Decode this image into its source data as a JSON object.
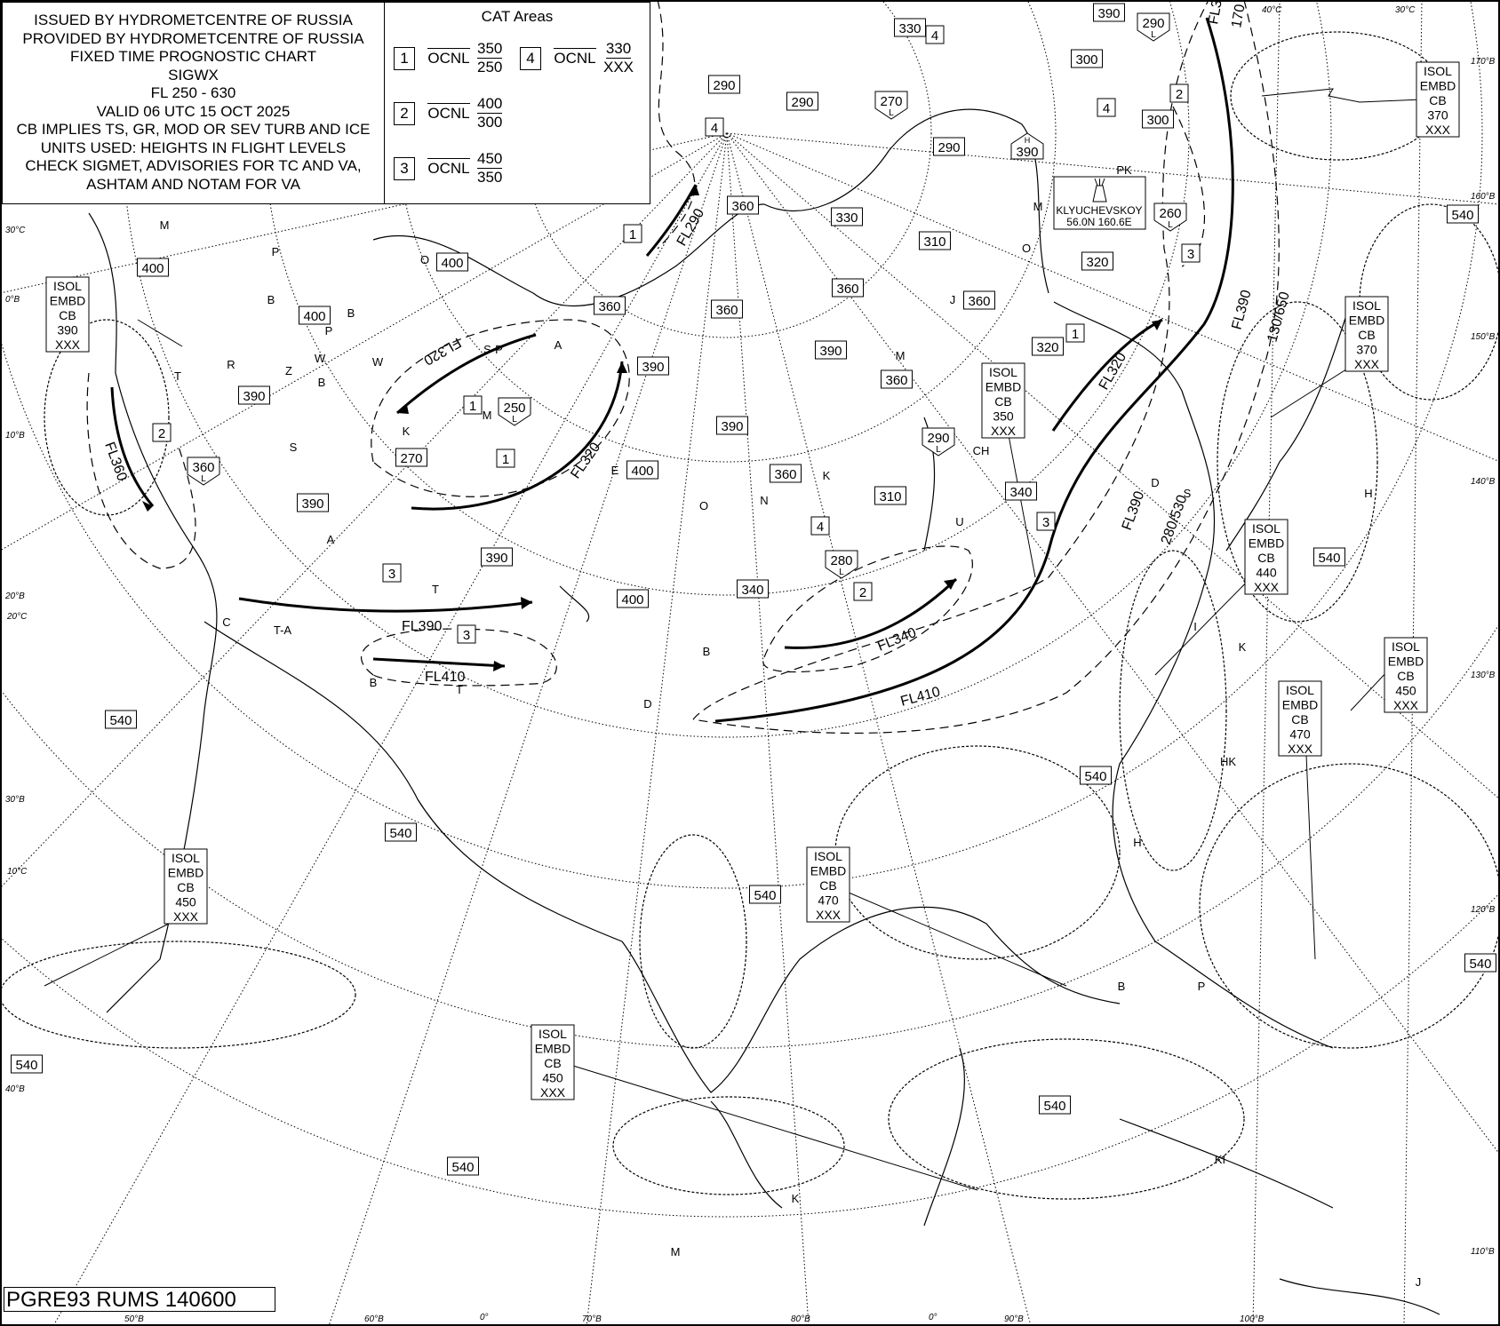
{
  "header": {
    "lines": [
      "ISSUED BY HYDROMETCENTRE OF RUSSIA",
      "PROVIDED BY HYDROMETCENTRE OF RUSSIA",
      "FIXED TIME PROGNOSTIC CHART",
      "SIGWX",
      "FL 250 - 630",
      "VALID 06 UTC 15 OCT 2025",
      "CB IMPLIES TS, GR, MOD OR SEV TURB AND ICE",
      "UNITS USED: HEIGHTS IN FLIGHT LEVELS",
      "CHECK SIGMET, ADVISORIES FOR TC AND VA,",
      "ASHTAM AND NOTAM FOR VA"
    ]
  },
  "cat_areas": {
    "title": "CAT Areas",
    "items": [
      {
        "num": "1",
        "label": "OCNL",
        "top": "350",
        "base": "250"
      },
      {
        "num": "2",
        "label": "OCNL",
        "top": "400",
        "base": "300"
      },
      {
        "num": "3",
        "label": "OCNL",
        "top": "450",
        "base": "350"
      },
      {
        "num": "4",
        "label": "OCNL",
        "top": "330",
        "base": "XXX"
      }
    ]
  },
  "tropopause": {
    "heights": [
      "330",
      "300",
      "290",
      "290",
      "290",
      "300",
      "360",
      "330",
      "310",
      "320",
      "360",
      "360",
      "320",
      "390",
      "360",
      "390",
      "360",
      "310",
      "340",
      "340",
      "400",
      "400",
      "390",
      "360",
      "360",
      "400",
      "400",
      "400",
      "390",
      "390",
      "390",
      "270",
      "390"
    ],
    "lows": [
      {
        "value": "290",
        "type": "L"
      },
      {
        "value": "270",
        "type": "L"
      },
      {
        "value": "260",
        "type": "L"
      },
      {
        "value": "250",
        "type": "L"
      },
      {
        "value": "360",
        "type": "L"
      },
      {
        "value": "290",
        "type": "L"
      },
      {
        "value": "280",
        "type": "L"
      }
    ],
    "highs": [
      {
        "value": "390",
        "type": "H"
      }
    ]
  },
  "freezing_level": [
    "540",
    "540",
    "540",
    "540",
    "540",
    "540",
    "540",
    "540",
    "540",
    "540"
  ],
  "cat_markers": [
    "4",
    "4",
    "4",
    "2",
    "1",
    "1",
    "3",
    "1",
    "1",
    "2",
    "3",
    "3",
    "4",
    "2",
    "3"
  ],
  "cb_areas": [
    {
      "lines": [
        "ISOL",
        "EMBD",
        "CB",
        "370",
        "XXX"
      ]
    },
    {
      "lines": [
        "ISOL",
        "EMBD",
        "CB",
        "390",
        "XXX"
      ]
    },
    {
      "lines": [
        "ISOL",
        "EMBD",
        "CB",
        "350",
        "XXX"
      ]
    },
    {
      "lines": [
        "ISOL",
        "EMBD",
        "CB",
        "370",
        "XXX"
      ]
    },
    {
      "lines": [
        "ISOL",
        "EMBD",
        "CB",
        "440",
        "XXX"
      ]
    },
    {
      "lines": [
        "ISOL",
        "EMBD",
        "CB",
        "450",
        "XXX"
      ]
    },
    {
      "lines": [
        "ISOL",
        "EMBD",
        "CB",
        "470",
        "XXX"
      ]
    },
    {
      "lines": [
        "ISOL",
        "EMBD",
        "CB",
        "450",
        "XXX"
      ]
    },
    {
      "lines": [
        "ISOL",
        "EMBD",
        "CB",
        "470",
        "XXX"
      ]
    },
    {
      "lines": [
        "ISOL",
        "EMBD",
        "CB",
        "450",
        "XXX"
      ]
    }
  ],
  "jet_streams": [
    "FL290",
    "FL320",
    "FL360",
    "FL320",
    "FL390",
    "FL410",
    "FL340",
    "FL410",
    "FL320",
    "FL390",
    "130/650",
    "FL390",
    "280/530",
    "FL3",
    "170"
  ],
  "volcano": {
    "name": "KLYUCHEVSKOY",
    "position": "56.0N  160.6E"
  },
  "graticule_labels": [
    "50°B",
    "60°B",
    "0°",
    "70°B",
    "80°B",
    "0°",
    "90°B",
    "100°B",
    "40°C",
    "30°C",
    "170°B",
    "160°B",
    "150°B",
    "140°B",
    "130°B",
    "120°B",
    "110°B",
    "30°C",
    "0°B",
    "10°B",
    "20°B",
    "30°B",
    "40°B",
    "10°C",
    "20°C"
  ],
  "station_letters": [
    "M",
    "P",
    "B",
    "O",
    "B",
    "P",
    "W",
    "W",
    "Z",
    "B",
    "R",
    "S",
    "K",
    "M",
    "S-P",
    "A",
    "T",
    "A",
    "E",
    "O",
    "N",
    "K",
    "M",
    "J",
    "CH",
    "U",
    "D",
    "K",
    "I",
    "D",
    "B",
    "T",
    "T-A",
    "B",
    "T",
    "C",
    "H",
    "HK",
    "P",
    "B",
    "KI",
    "K",
    "M",
    "J",
    "H",
    "S",
    "PK",
    "M",
    "O"
  ],
  "footer": {
    "code": "PGRE93 RUMS 140600"
  }
}
